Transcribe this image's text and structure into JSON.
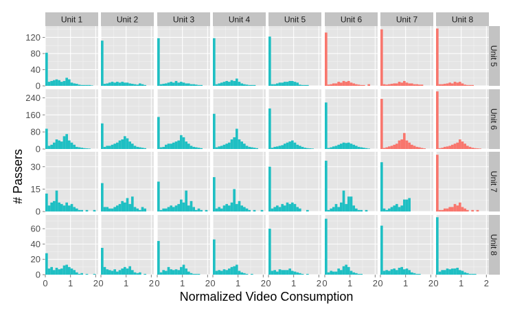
{
  "chart_data": {
    "type": "bar",
    "chart_kind": "faceted-histogram",
    "xlabel": "Normalized Video Consumption",
    "ylabel": "# Passers",
    "column_strip_labels": [
      "Unit 1",
      "Unit 2",
      "Unit 3",
      "Unit 4",
      "Unit 5",
      "Unit 6",
      "Unit 7",
      "Unit 8"
    ],
    "row_strip_labels": [
      "Unit 5",
      "Unit 6",
      "Unit 7",
      "Unit 8"
    ],
    "x_ticks": [
      0,
      1,
      2
    ],
    "x_tick_labels": [
      "0",
      "1",
      "2"
    ],
    "xlim": [
      0,
      2.1
    ],
    "bin_width": 0.1,
    "bin_starts": [
      0.0,
      0.1,
      0.2,
      0.3,
      0.4,
      0.5,
      0.6,
      0.7,
      0.8,
      0.9,
      1.0,
      1.1,
      1.2,
      1.3,
      1.4,
      1.5,
      1.6,
      1.7,
      1.8,
      1.9,
      2.0
    ],
    "grid": true,
    "legend": "none",
    "colors": {
      "available": "#1fbfc3",
      "future_unit": "#f8766d",
      "panel_background": "#e5e5e5",
      "strip_background": "#c3c3c3",
      "grid_line": "#ffffff"
    },
    "rows": [
      {
        "label": "Unit 5",
        "ylim": [
          0,
          148
        ],
        "y_ticks": [
          0,
          40,
          80,
          120
        ],
        "y_tick_labels": [
          "0",
          "40",
          "80",
          "120"
        ],
        "panels": [
          {
            "unit": "Unit 1",
            "color": "available",
            "counts": [
              82,
              10,
              12,
              14,
              16,
              14,
              10,
              12,
              20,
              16,
              8,
              6,
              5,
              3,
              2,
              2,
              2,
              2,
              1,
              0,
              0
            ]
          },
          {
            "unit": "Unit 2",
            "color": "available",
            "counts": [
              112,
              5,
              6,
              8,
              10,
              8,
              10,
              8,
              10,
              8,
              8,
              6,
              5,
              4,
              3,
              6,
              4,
              2,
              0,
              0,
              0
            ]
          },
          {
            "unit": "Unit 3",
            "color": "available",
            "counts": [
              118,
              4,
              5,
              6,
              8,
              10,
              8,
              12,
              8,
              10,
              8,
              6,
              6,
              4,
              4,
              3,
              2,
              2,
              0,
              0,
              0
            ]
          },
          {
            "unit": "Unit 4",
            "color": "available",
            "counts": [
              118,
              4,
              6,
              8,
              10,
              12,
              10,
              14,
              12,
              18,
              10,
              6,
              4,
              3,
              2,
              2,
              2,
              0,
              0,
              0,
              0
            ]
          },
          {
            "unit": "Unit 5",
            "color": "available",
            "counts": [
              122,
              4,
              4,
              6,
              8,
              8,
              10,
              10,
              12,
              12,
              10,
              8,
              3,
              2,
              2,
              2,
              0,
              0,
              0,
              0,
              0
            ]
          },
          {
            "unit": "Unit 6",
            "color": "future_unit",
            "counts": [
              132,
              3,
              4,
              6,
              6,
              10,
              8,
              12,
              10,
              12,
              8,
              6,
              4,
              3,
              2,
              2,
              0,
              4,
              0,
              0,
              0
            ]
          },
          {
            "unit": "Unit 7",
            "color": "future_unit",
            "counts": [
              140,
              4,
              3,
              4,
              5,
              6,
              6,
              10,
              8,
              12,
              8,
              6,
              6,
              4,
              4,
              3,
              3,
              0,
              0,
              0,
              0
            ]
          },
          {
            "unit": "Unit 8",
            "color": "future_unit",
            "counts": [
              142,
              4,
              4,
              5,
              6,
              8,
              6,
              10,
              8,
              10,
              6,
              3,
              2,
              2,
              2,
              0,
              0,
              0,
              0,
              0,
              0
            ]
          }
        ]
      },
      {
        "label": "Unit 6",
        "ylim": [
          0,
          280
        ],
        "y_ticks": [
          0,
          80,
          160,
          240
        ],
        "y_tick_labels": [
          "0",
          "80",
          "160",
          "240"
        ],
        "panels": [
          {
            "unit": "Unit 1",
            "color": "available",
            "counts": [
              95,
              15,
              20,
              30,
              45,
              40,
              35,
              60,
              70,
              40,
              30,
              20,
              10,
              8,
              6,
              4,
              3,
              2,
              0,
              0,
              0
            ]
          },
          {
            "unit": "Unit 2",
            "color": "available",
            "counts": [
              120,
              10,
              15,
              15,
              20,
              25,
              30,
              40,
              45,
              60,
              50,
              35,
              25,
              15,
              10,
              8,
              6,
              4,
              0,
              0,
              0
            ]
          },
          {
            "unit": "Unit 3",
            "color": "available",
            "counts": [
              150,
              8,
              10,
              20,
              25,
              25,
              30,
              35,
              40,
              65,
              55,
              35,
              25,
              15,
              10,
              8,
              6,
              4,
              0,
              0,
              0
            ]
          },
          {
            "unit": "Unit 4",
            "color": "available",
            "counts": [
              165,
              8,
              12,
              15,
              20,
              25,
              30,
              45,
              55,
              95,
              45,
              35,
              25,
              15,
              10,
              8,
              6,
              4,
              0,
              0,
              0
            ]
          },
          {
            "unit": "Unit 5",
            "color": "available",
            "counts": [
              190,
              6,
              10,
              12,
              15,
              18,
              25,
              30,
              35,
              40,
              30,
              20,
              15,
              10,
              6,
              4,
              3,
              2,
              0,
              0,
              0
            ]
          },
          {
            "unit": "Unit 6",
            "color": "available",
            "counts": [
              218,
              5,
              8,
              12,
              15,
              20,
              25,
              30,
              28,
              30,
              25,
              20,
              15,
              10,
              8,
              6,
              4,
              2,
              0,
              0,
              0
            ]
          },
          {
            "unit": "Unit 7",
            "color": "future_unit",
            "counts": [
              235,
              5,
              8,
              12,
              15,
              20,
              25,
              40,
              45,
              75,
              40,
              30,
              20,
              15,
              10,
              8,
              5,
              3,
              0,
              0,
              0
            ]
          },
          {
            "unit": "Unit 8",
            "color": "future_unit",
            "counts": [
              270,
              4,
              6,
              10,
              12,
              15,
              20,
              25,
              30,
              45,
              35,
              25,
              15,
              10,
              6,
              4,
              3,
              2,
              0,
              0,
              0
            ]
          }
        ]
      },
      {
        "label": "Unit 7",
        "ylim": [
          0,
          40
        ],
        "y_ticks": [
          0,
          15,
          30
        ],
        "y_tick_labels": [
          "0",
          "15",
          "30"
        ],
        "panels": [
          {
            "unit": "Unit 1",
            "color": "available",
            "counts": [
              12,
              4,
              6,
              7,
              14,
              6,
              5,
              4,
              6,
              4,
              5,
              3,
              2,
              1,
              1,
              0,
              1,
              0,
              0,
              1,
              0
            ]
          },
          {
            "unit": "Unit 2",
            "color": "available",
            "counts": [
              19,
              3,
              3,
              2,
              2,
              3,
              4,
              5,
              7,
              6,
              9,
              5,
              10,
              3,
              2,
              1,
              3,
              2,
              0,
              0,
              0
            ]
          },
          {
            "unit": "Unit 3",
            "color": "available",
            "counts": [
              20,
              1,
              2,
              2,
              3,
              4,
              3,
              4,
              5,
              8,
              6,
              14,
              4,
              7,
              3,
              1,
              2,
              1,
              0,
              1,
              0
            ]
          },
          {
            "unit": "Unit 4",
            "color": "available",
            "counts": [
              23,
              2,
              3,
              2,
              4,
              5,
              4,
              6,
              15,
              5,
              7,
              4,
              3,
              2,
              1,
              0,
              1,
              0,
              0,
              1,
              0
            ]
          },
          {
            "unit": "Unit 5",
            "color": "available",
            "counts": [
              30,
              2,
              3,
              4,
              3,
              5,
              4,
              6,
              5,
              6,
              5,
              3,
              2,
              0,
              0,
              1,
              0,
              0,
              0,
              0,
              0
            ]
          },
          {
            "unit": "Unit 6",
            "color": "available",
            "counts": [
              34,
              1,
              2,
              3,
              5,
              3,
              6,
              14,
              5,
              10,
              10,
              4,
              2,
              1,
              1,
              0,
              1,
              0,
              0,
              0,
              0
            ]
          },
          {
            "unit": "Unit 7",
            "color": "available",
            "counts": [
              33,
              2,
              1,
              2,
              3,
              4,
              5,
              3,
              4,
              8,
              8,
              9,
              0,
              0,
              0,
              0,
              0,
              0,
              0,
              0,
              0
            ]
          },
          {
            "unit": "Unit 8",
            "color": "future_unit",
            "counts": [
              38,
              1,
              1,
              2,
              2,
              3,
              3,
              5,
              4,
              6,
              3,
              2,
              1,
              0,
              1,
              0,
              1,
              0,
              0,
              0,
              0
            ]
          }
        ]
      },
      {
        "label": "Unit 8",
        "ylim": [
          0,
          78
        ],
        "y_ticks": [
          0,
          20,
          40,
          60
        ],
        "y_tick_labels": [
          "0",
          "20",
          "40",
          "60"
        ],
        "panels": [
          {
            "unit": "Unit 1",
            "color": "available",
            "counts": [
              28,
              8,
              10,
              6,
              9,
              7,
              8,
              12,
              13,
              10,
              8,
              6,
              3,
              1,
              2,
              0,
              1,
              0,
              0,
              1,
              0
            ]
          },
          {
            "unit": "Unit 2",
            "color": "available",
            "counts": [
              35,
              10,
              7,
              6,
              5,
              7,
              4,
              6,
              8,
              10,
              8,
              11,
              6,
              3,
              2,
              3,
              0,
              1,
              0,
              0,
              0
            ]
          },
          {
            "unit": "Unit 3",
            "color": "available",
            "counts": [
              44,
              3,
              6,
              5,
              10,
              7,
              6,
              7,
              6,
              10,
              13,
              8,
              4,
              2,
              1,
              1,
              1,
              0,
              0,
              0,
              0
            ]
          },
          {
            "unit": "Unit 4",
            "color": "available",
            "counts": [
              46,
              5,
              6,
              5,
              7,
              6,
              8,
              10,
              11,
              13,
              5,
              3,
              2,
              1,
              0,
              1,
              0,
              0,
              0,
              0,
              0
            ]
          },
          {
            "unit": "Unit 5",
            "color": "available",
            "counts": [
              60,
              5,
              6,
              4,
              7,
              6,
              6,
              6,
              8,
              5,
              4,
              3,
              2,
              1,
              0,
              1,
              0,
              0,
              0,
              0,
              0
            ]
          },
          {
            "unit": "Unit 6",
            "color": "available",
            "counts": [
              73,
              3,
              5,
              4,
              4,
              8,
              6,
              11,
              13,
              10,
              5,
              3,
              2,
              1,
              1,
              0,
              0,
              0,
              0,
              0,
              0
            ]
          },
          {
            "unit": "Unit 7",
            "color": "available",
            "counts": [
              64,
              5,
              6,
              5,
              7,
              8,
              6,
              9,
              10,
              7,
              8,
              6,
              3,
              2,
              1,
              1,
              0,
              0,
              0,
              0,
              0
            ]
          },
          {
            "unit": "Unit 8",
            "color": "available",
            "counts": [
              75,
              4,
              6,
              6,
              8,
              7,
              8,
              8,
              9,
              6,
              5,
              3,
              2,
              1,
              1,
              1,
              0,
              0,
              0,
              0,
              0
            ]
          }
        ]
      }
    ]
  }
}
